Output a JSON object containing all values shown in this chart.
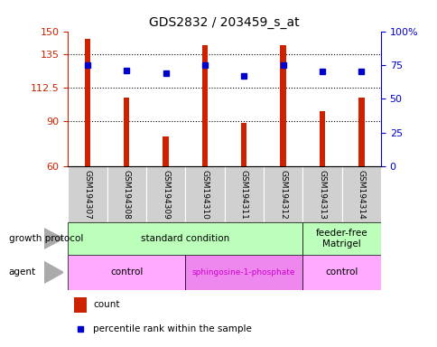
{
  "title": "GDS2832 / 203459_s_at",
  "samples": [
    "GSM194307",
    "GSM194308",
    "GSM194309",
    "GSM194310",
    "GSM194311",
    "GSM194312",
    "GSM194313",
    "GSM194314"
  ],
  "counts": [
    145,
    106,
    80,
    141,
    89,
    141,
    97,
    106
  ],
  "percentile_ranks": [
    75,
    71,
    69,
    75,
    67,
    75,
    70,
    70
  ],
  "ylim_left": [
    60,
    150
  ],
  "ylim_right": [
    0,
    100
  ],
  "yticks_left": [
    60,
    90,
    112.5,
    135,
    150
  ],
  "yticks_right": [
    0,
    25,
    50,
    75,
    100
  ],
  "ytick_right_labels": [
    "0",
    "25",
    "50",
    "75",
    "100%"
  ],
  "bar_color": "#cc2200",
  "dot_color": "#0000cc",
  "bar_width": 0.15,
  "dot_size": 5,
  "grid_lines": [
    90,
    112.5,
    135
  ],
  "gp_groups": [
    {
      "label": "standard condition",
      "start": 0,
      "end": 6,
      "color": "#bbffbb"
    },
    {
      "label": "feeder-free\nMatrigel",
      "start": 6,
      "end": 8,
      "color": "#bbffbb"
    }
  ],
  "agent_groups": [
    {
      "label": "control",
      "start": 0,
      "end": 3,
      "color": "#ffaaff"
    },
    {
      "label": "sphingosine-1-phosphate",
      "start": 3,
      "end": 6,
      "color": "#ee88ee"
    },
    {
      "label": "control",
      "start": 6,
      "end": 8,
      "color": "#ffaaff"
    }
  ],
  "agent_label_color": "#cc00cc",
  "gp_row_label": "growth protocol",
  "agent_row_label": "agent",
  "legend_count": "count",
  "legend_pct": "percentile rank within the sample"
}
